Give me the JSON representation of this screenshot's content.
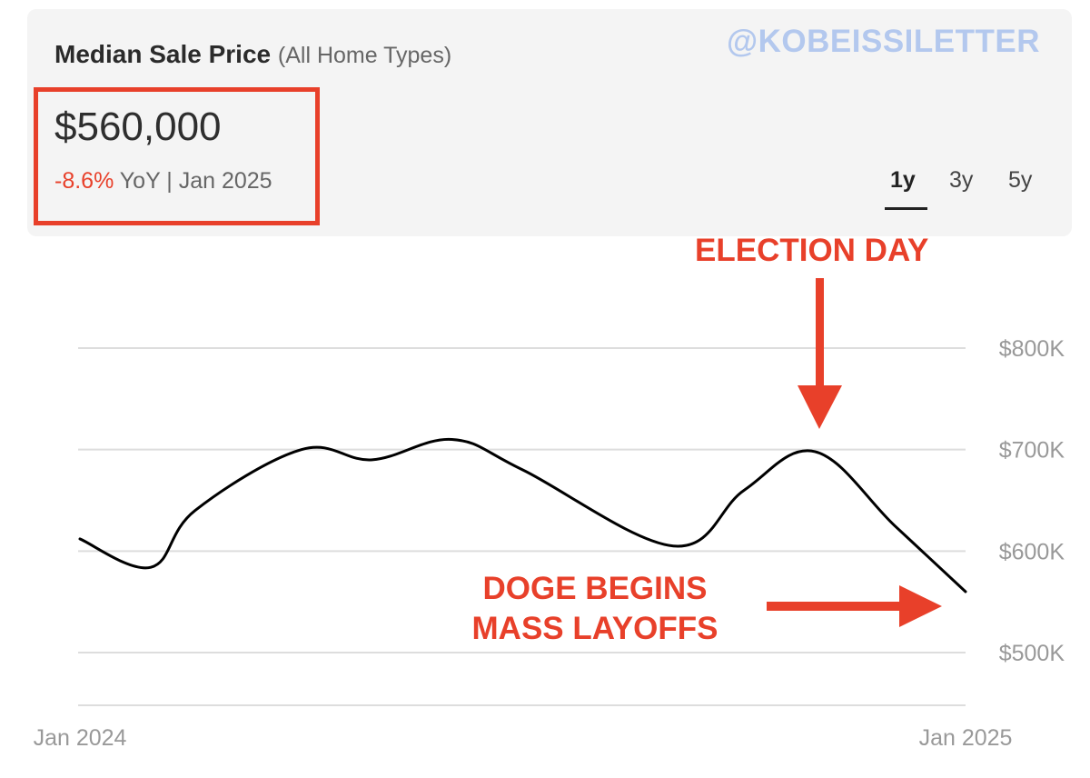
{
  "header": {
    "title": "Median Sale Price",
    "subtitle": "(All Home Types)",
    "watermark": "@KOBEISSILETTER",
    "price": "$560,000",
    "change_pct": "-8.6%",
    "change_suffix": " YoY | Jan 2025",
    "range_tabs": [
      {
        "label": "1y",
        "active": true
      },
      {
        "label": "3y",
        "active": false
      },
      {
        "label": "5y",
        "active": false
      }
    ]
  },
  "annotations": {
    "election_day": "ELECTION DAY",
    "doge_line1": "DOGE BEGINS",
    "doge_line2": "MASS LAYOFFS"
  },
  "colors": {
    "accent": "#e8402a",
    "line": "#000000",
    "grid": "#dddddd",
    "tick": "#999999",
    "watermark": "#b3c8ee"
  },
  "chart_data": {
    "type": "line",
    "title": "Median Sale Price",
    "x_start_label": "Jan 2024",
    "x_end_label": "Jan 2025",
    "x": [
      0,
      0.08,
      0.13,
      0.25,
      0.33,
      0.42,
      0.5,
      0.67,
      0.75,
      0.83,
      0.92,
      1.0
    ],
    "values": [
      612000,
      584000,
      640000,
      700000,
      690000,
      710000,
      680000,
      605000,
      660000,
      698000,
      625000,
      560000
    ],
    "yticks": [
      500000,
      600000,
      700000,
      800000
    ],
    "ytick_labels": [
      "$500K",
      "$600K",
      "$700K",
      "$800K"
    ],
    "ylim": [
      465000,
      850000
    ],
    "grid": true
  }
}
